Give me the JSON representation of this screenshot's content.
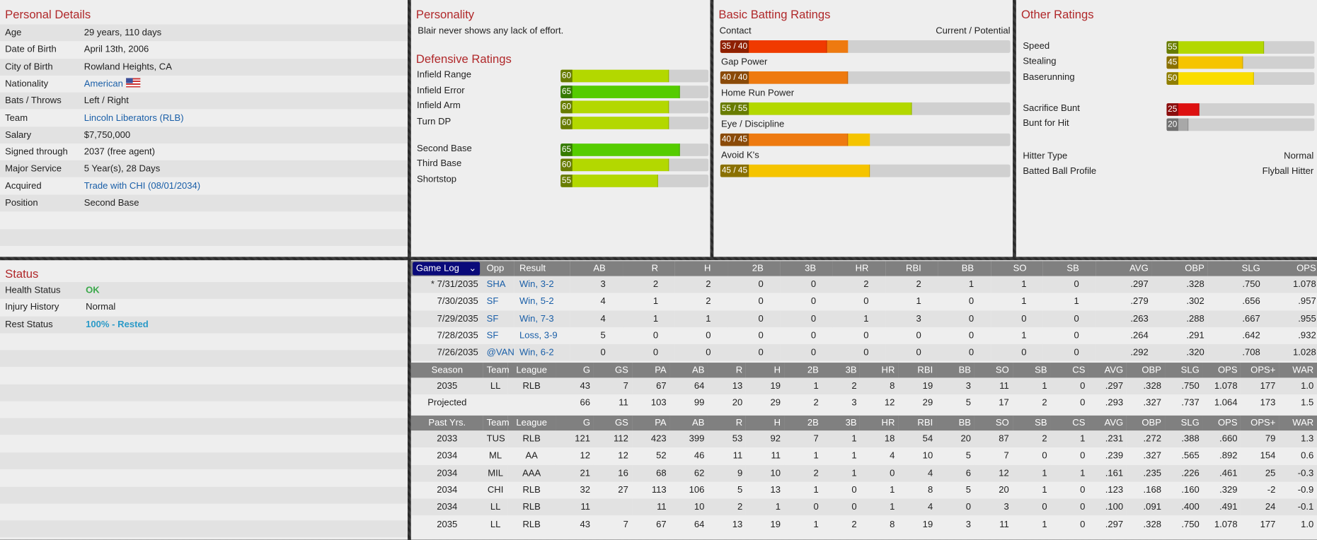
{
  "personal": {
    "title": "Personal Details",
    "rows": [
      {
        "label": "Age",
        "value": "29 years, 110 days"
      },
      {
        "label": "Date of Birth",
        "value": "April 13th, 2006"
      },
      {
        "label": "City of Birth",
        "value": "Rowland Heights, CA"
      },
      {
        "label": "Nationality",
        "value": "American",
        "link": true,
        "flag": "us-flag-icon"
      },
      {
        "label": "Bats / Throws",
        "value": "Left / Right"
      },
      {
        "label": "Team",
        "value": "Lincoln Liberators (RLB)",
        "link": true
      },
      {
        "label": "Salary",
        "value": "$7,750,000"
      },
      {
        "label": "Signed through",
        "value": "2037 (free agent)"
      },
      {
        "label": "Major Service",
        "value": "5 Year(s), 28 Days"
      },
      {
        "label": "Acquired",
        "value": "Trade with CHI (08/01/2034)",
        "link": true
      },
      {
        "label": "Position",
        "value": "Second Base"
      }
    ]
  },
  "personality": {
    "title": "Personality",
    "text": "Blair never shows any lack of effort."
  },
  "defense": {
    "title": "Defensive Ratings",
    "items": [
      {
        "label": "Infield Range",
        "value": 60
      },
      {
        "label": "Infield Error",
        "value": 65
      },
      {
        "label": "Infield Arm",
        "value": 60
      },
      {
        "label": "Turn DP",
        "value": 60
      },
      {
        "label": "Second Base",
        "value": 65
      },
      {
        "label": "Third Base",
        "value": 60
      },
      {
        "label": "Shortstop",
        "value": 55
      }
    ]
  },
  "batting": {
    "title": "Basic Batting Ratings",
    "legend": "Current / Potential",
    "items": [
      {
        "label": "Contact",
        "current": 35,
        "potential": 40,
        "text": "35 / 40"
      },
      {
        "label": "Gap Power",
        "current": 40,
        "potential": 40,
        "text": "40 / 40"
      },
      {
        "label": "Home Run Power",
        "current": 55,
        "potential": 55,
        "text": "55 / 55"
      },
      {
        "label": "Eye / Discipline",
        "current": 40,
        "potential": 45,
        "text": "40 / 45"
      },
      {
        "label": "Avoid K's",
        "current": 45,
        "potential": 45,
        "text": "45 / 45"
      }
    ]
  },
  "other": {
    "title": "Other Ratings",
    "items": [
      {
        "label": "Speed",
        "value": 55
      },
      {
        "label": "Stealing",
        "value": 45
      },
      {
        "label": "Baserunning",
        "value": 50
      },
      {
        "label": "Sacrifice Bunt",
        "value": 25
      },
      {
        "label": "Bunt for Hit",
        "value": 20
      }
    ],
    "hitter_type_label": "Hitter Type",
    "hitter_type": "Normal",
    "bbp_label": "Batted Ball Profile",
    "bbp": "Flyball Hitter"
  },
  "status": {
    "title": "Status",
    "rows": [
      {
        "label": "Health Status",
        "value": "OK",
        "color": "#3aa84a"
      },
      {
        "label": "Injury History",
        "value": "Normal"
      },
      {
        "label": "Rest Status",
        "value": "100% - Rested",
        "color": "#2a9ac8"
      }
    ]
  },
  "gamelog": {
    "selector": "Game Log",
    "headers": [
      "Opp",
      "Result",
      "AB",
      "R",
      "H",
      "2B",
      "3B",
      "HR",
      "RBI",
      "BB",
      "SO",
      "SB",
      "AVG",
      "OBP",
      "SLG",
      "OPS"
    ],
    "rows": [
      [
        "* 7/31/2035",
        "SHA",
        "Win, 3-2",
        "3",
        "2",
        "2",
        "0",
        "0",
        "2",
        "2",
        "1",
        "1",
        "0",
        ".297",
        ".328",
        ".750",
        "1.078"
      ],
      [
        "7/30/2035",
        "SF",
        "Win, 5-2",
        "4",
        "1",
        "2",
        "0",
        "0",
        "0",
        "1",
        "0",
        "1",
        "1",
        ".279",
        ".302",
        ".656",
        ".957"
      ],
      [
        "7/29/2035",
        "SF",
        "Win, 7-3",
        "4",
        "1",
        "1",
        "0",
        "0",
        "1",
        "3",
        "0",
        "0",
        "0",
        ".263",
        ".288",
        ".667",
        ".955"
      ],
      [
        "7/28/2035",
        "SF",
        "Loss, 3-9",
        "5",
        "0",
        "0",
        "0",
        "0",
        "0",
        "0",
        "0",
        "1",
        "0",
        ".264",
        ".291",
        ".642",
        ".932"
      ],
      [
        "7/26/2035",
        "@VAN",
        "Win, 6-2",
        "0",
        "0",
        "0",
        "0",
        "0",
        "0",
        "0",
        "0",
        "0",
        "0",
        ".292",
        ".320",
        ".708",
        "1.028"
      ]
    ]
  },
  "season": {
    "headers": [
      "Season",
      "Team",
      "League",
      "G",
      "GS",
      "PA",
      "AB",
      "R",
      "H",
      "2B",
      "3B",
      "HR",
      "RBI",
      "BB",
      "SO",
      "SB",
      "CS",
      "AVG",
      "OBP",
      "SLG",
      "OPS",
      "OPS+",
      "WAR"
    ],
    "rows": [
      [
        "2035",
        "LL",
        "RLB",
        "43",
        "7",
        "67",
        "64",
        "13",
        "19",
        "1",
        "2",
        "8",
        "19",
        "3",
        "11",
        "1",
        "0",
        ".297",
        ".328",
        ".750",
        "1.078",
        "177",
        "1.0"
      ],
      [
        "Projected",
        "",
        "",
        "66",
        "11",
        "103",
        "99",
        "20",
        "29",
        "2",
        "3",
        "12",
        "29",
        "5",
        "17",
        "2",
        "0",
        ".293",
        ".327",
        ".737",
        "1.064",
        "173",
        "1.5"
      ]
    ]
  },
  "past": {
    "headers": [
      "Past Yrs.",
      "Team",
      "League",
      "G",
      "GS",
      "PA",
      "AB",
      "R",
      "H",
      "2B",
      "3B",
      "HR",
      "RBI",
      "BB",
      "SO",
      "SB",
      "CS",
      "AVG",
      "OBP",
      "SLG",
      "OPS",
      "OPS+",
      "WAR"
    ],
    "rows": [
      [
        "2033",
        "TUS",
        "RLB",
        "121",
        "112",
        "423",
        "399",
        "53",
        "92",
        "7",
        "1",
        "18",
        "54",
        "20",
        "87",
        "2",
        "1",
        ".231",
        ".272",
        ".388",
        ".660",
        "79",
        "1.3"
      ],
      [
        "2034",
        "ML",
        "AA",
        "12",
        "12",
        "52",
        "46",
        "11",
        "11",
        "1",
        "1",
        "4",
        "10",
        "5",
        "7",
        "0",
        "0",
        ".239",
        ".327",
        ".565",
        ".892",
        "154",
        "0.6"
      ],
      [
        "2034",
        "MIL",
        "AAA",
        "21",
        "16",
        "68",
        "62",
        "9",
        "10",
        "2",
        "1",
        "0",
        "4",
        "6",
        "12",
        "1",
        "1",
        ".161",
        ".235",
        ".226",
        ".461",
        "25",
        "-0.3"
      ],
      [
        "2034",
        "CHI",
        "RLB",
        "32",
        "27",
        "113",
        "106",
        "5",
        "13",
        "1",
        "0",
        "1",
        "8",
        "5",
        "20",
        "1",
        "0",
        ".123",
        ".168",
        ".160",
        ".329",
        "-2",
        "-0.9"
      ],
      [
        "2034",
        "LL",
        "RLB",
        "11",
        "",
        "11",
        "10",
        "2",
        "1",
        "0",
        "0",
        "1",
        "4",
        "0",
        "3",
        "0",
        "0",
        ".100",
        ".091",
        ".400",
        ".491",
        "24",
        "-0.1"
      ],
      [
        "2035",
        "LL",
        "RLB",
        "43",
        "7",
        "67",
        "64",
        "13",
        "19",
        "1",
        "2",
        "8",
        "19",
        "3",
        "11",
        "1",
        "0",
        ".297",
        ".328",
        ".750",
        "1.078",
        "177",
        "1.0"
      ]
    ]
  },
  "colors": {
    "title": "#b0282a",
    "link": "#1a5fa8",
    "header": "#808080",
    "selector": "#0a0a7a"
  }
}
